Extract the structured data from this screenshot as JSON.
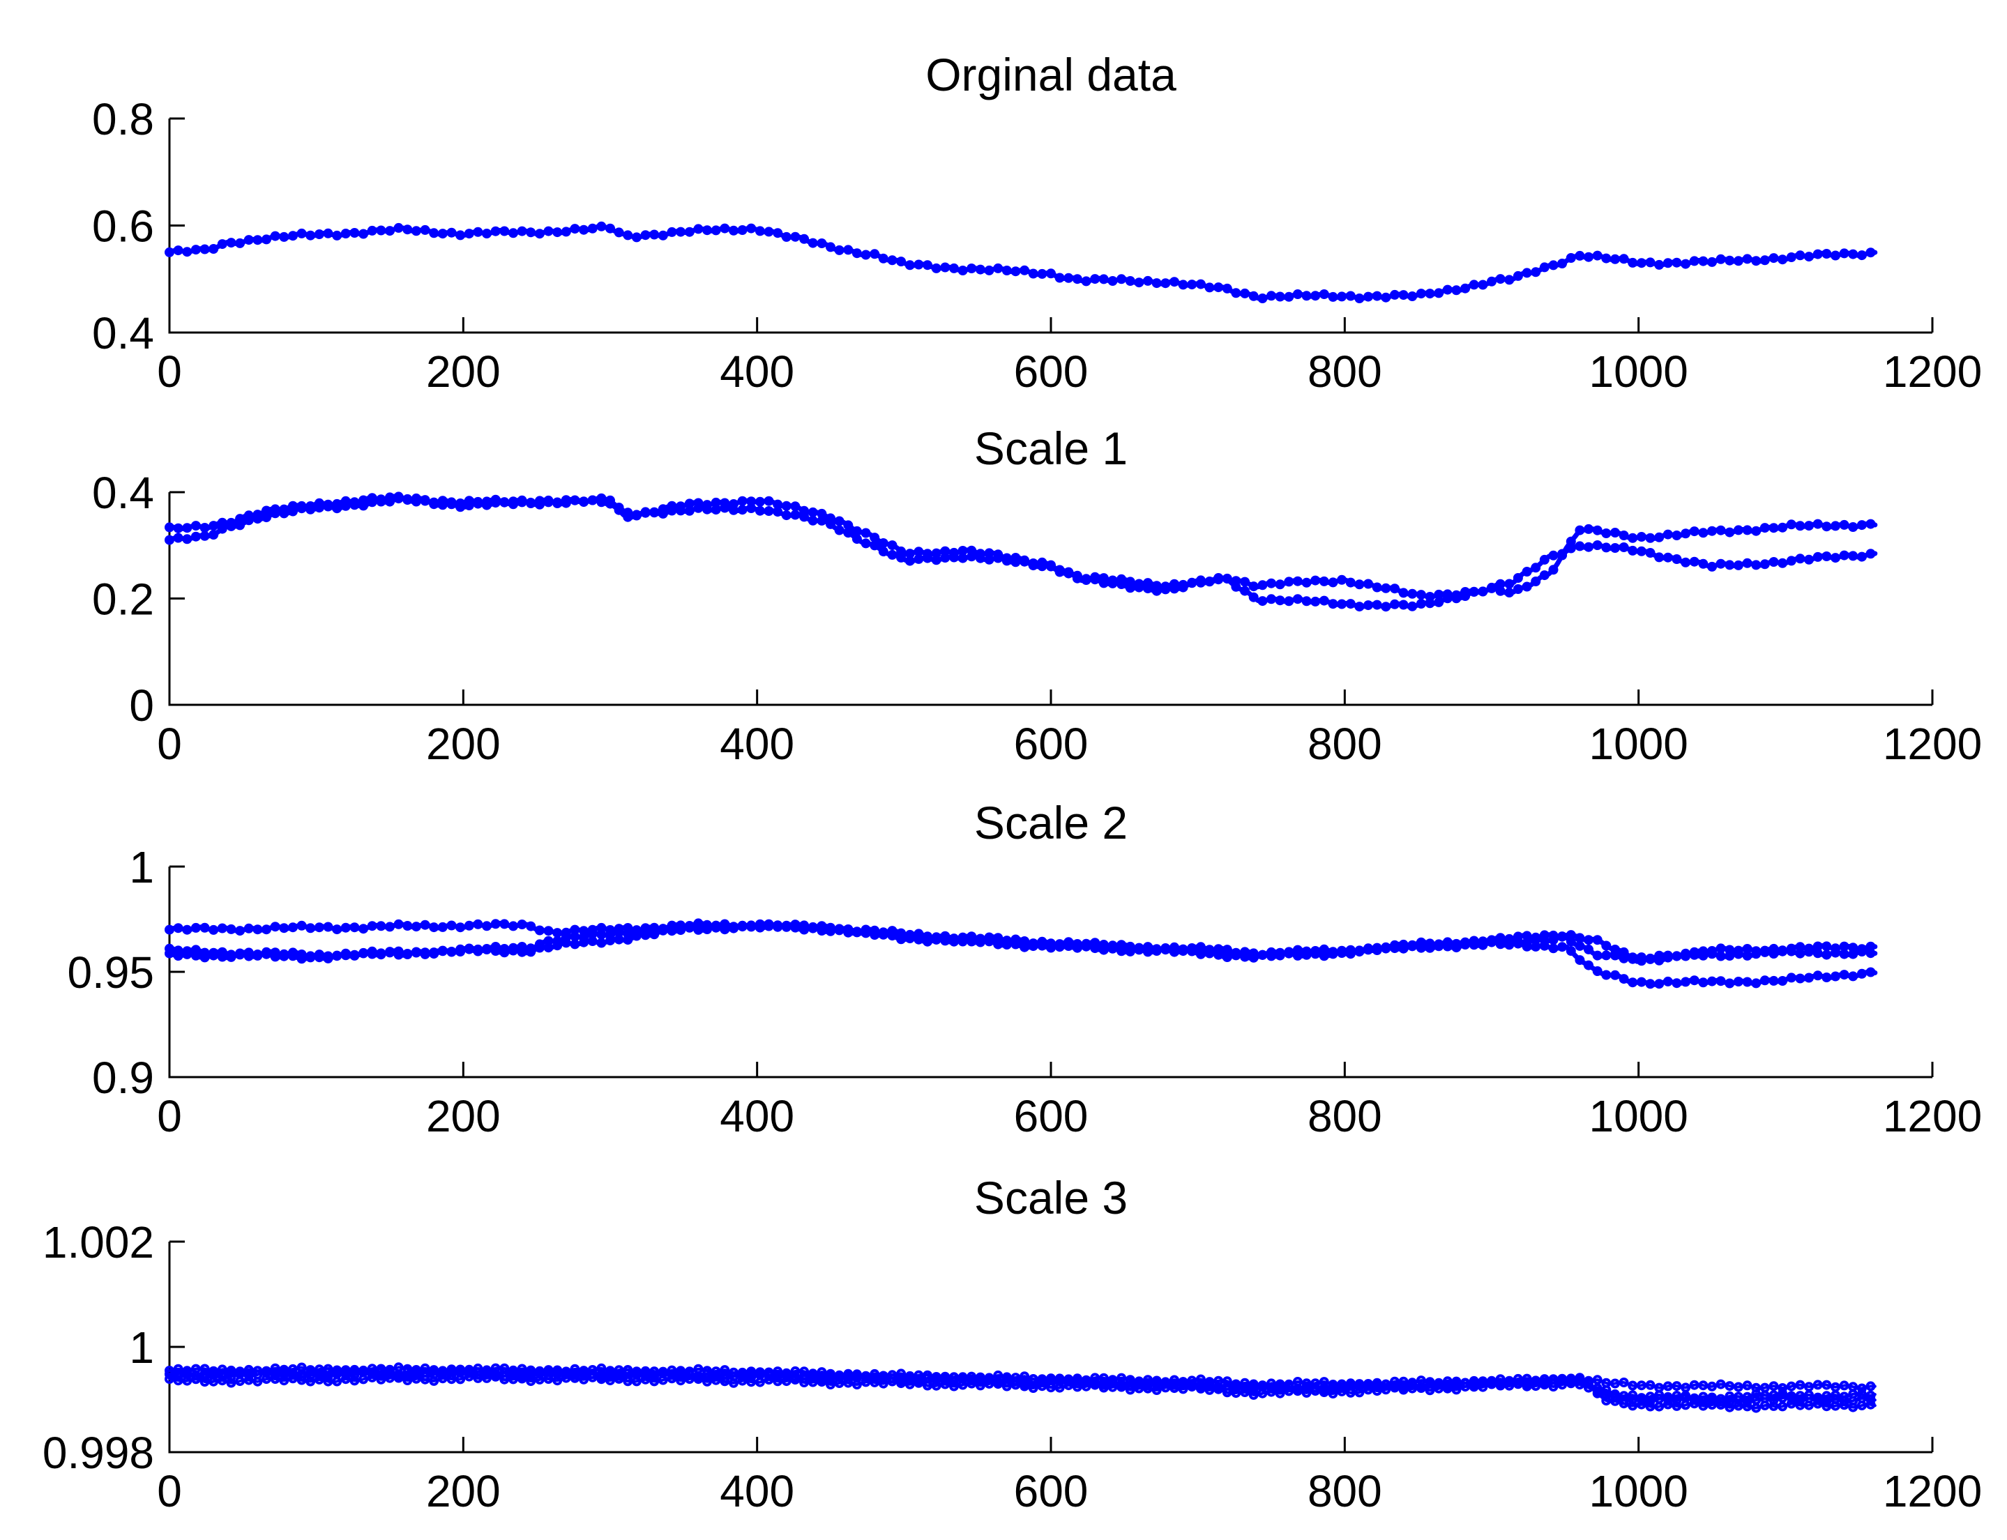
{
  "chart_data": [
    {
      "type": "scatter",
      "title": "Orginal data",
      "xlim": [
        0,
        1200
      ],
      "ylim": [
        0.4,
        0.8
      ],
      "xticks": [
        0,
        200,
        400,
        600,
        800,
        1000,
        1200
      ],
      "yticks": [
        0.4,
        0.6,
        0.8
      ],
      "xtick_labels": [
        "0",
        "200",
        "400",
        "600",
        "800",
        "1000",
        "1200"
      ],
      "ytick_labels": [
        "0.4",
        "0.6",
        "0.8"
      ],
      "marker": "circle",
      "color": "#0000ff",
      "series": [
        {
          "x": [
            0,
            25,
            40,
            60,
            100,
            160,
            200,
            250,
            300,
            310,
            350,
            400,
            420,
            450,
            480,
            500,
            540,
            600,
            620,
            680,
            720,
            740,
            800,
            850,
            900,
            915,
            940,
            960,
            1000,
            1050,
            1100,
            1163
          ],
          "y": [
            0.55,
            0.553,
            0.568,
            0.575,
            0.583,
            0.592,
            0.585,
            0.588,
            0.595,
            0.58,
            0.588,
            0.595,
            0.58,
            0.56,
            0.545,
            0.527,
            0.52,
            0.51,
            0.498,
            0.495,
            0.48,
            0.468,
            0.468,
            0.468,
            0.495,
            0.5,
            0.525,
            0.545,
            0.53,
            0.532,
            0.54,
            0.55
          ]
        }
      ]
    },
    {
      "type": "scatter",
      "title": "Scale 1",
      "xlim": [
        0,
        1200
      ],
      "ylim": [
        0,
        0.4
      ],
      "xticks": [
        0,
        200,
        400,
        600,
        800,
        1000,
        1200
      ],
      "yticks": [
        0,
        0.2,
        0.4
      ],
      "xtick_labels": [
        "0",
        "200",
        "400",
        "600",
        "800",
        "1000",
        "1200"
      ],
      "ytick_labels": [
        "0",
        "0.2",
        "0.4"
      ],
      "marker": "circle",
      "color": "#0000ff",
      "series": [
        {
          "x": [
            0,
            25,
            40,
            60,
            100,
            160,
            200,
            250,
            300,
            310,
            350,
            400,
            450,
            500,
            540,
            600,
            620,
            680,
            720,
            740,
            800,
            850,
            900,
            915,
            940,
            960,
            1000,
            1050,
            1100,
            1163
          ],
          "y": [
            0.31,
            0.315,
            0.335,
            0.352,
            0.37,
            0.385,
            0.375,
            0.38,
            0.385,
            0.36,
            0.365,
            0.37,
            0.34,
            0.27,
            0.28,
            0.26,
            0.24,
            0.225,
            0.235,
            0.2,
            0.19,
            0.185,
            0.22,
            0.23,
            0.28,
            0.3,
            0.29,
            0.26,
            0.27,
            0.285
          ]
        },
        {
          "x": [
            0,
            25,
            40,
            60,
            100,
            160,
            200,
            250,
            300,
            310,
            350,
            400,
            450,
            500,
            540,
            600,
            620,
            680,
            720,
            740,
            800,
            850,
            900,
            915,
            940,
            960,
            1000,
            1050,
            1100,
            1163
          ],
          "y": [
            0.33,
            0.335,
            0.345,
            0.36,
            0.378,
            0.39,
            0.38,
            0.385,
            0.38,
            0.355,
            0.375,
            0.385,
            0.355,
            0.285,
            0.29,
            0.265,
            0.235,
            0.215,
            0.24,
            0.225,
            0.235,
            0.205,
            0.215,
            0.21,
            0.25,
            0.33,
            0.315,
            0.325,
            0.335,
            0.34
          ]
        }
      ]
    },
    {
      "type": "scatter",
      "title": "Scale 2",
      "xlim": [
        0,
        1200
      ],
      "ylim": [
        0.9,
        1
      ],
      "xticks": [
        0,
        200,
        400,
        600,
        800,
        1000,
        1200
      ],
      "yticks": [
        0.9,
        0.95,
        1
      ],
      "xtick_labels": [
        "0",
        "200",
        "400",
        "600",
        "800",
        "1000",
        "1200"
      ],
      "ytick_labels": [
        "0.9",
        "0.95",
        "1"
      ],
      "marker": "circle",
      "color": "#0000ff",
      "series": [
        {
          "x": [
            0,
            100,
            200,
            245,
            260,
            300,
            350,
            400,
            450,
            500,
            600,
            700,
            740,
            800,
            850,
            900,
            950,
            970,
            1000,
            1050,
            1100,
            1163
          ],
          "y": [
            0.97,
            0.971,
            0.972,
            0.972,
            0.969,
            0.97,
            0.972,
            0.972,
            0.971,
            0.967,
            0.963,
            0.961,
            0.959,
            0.96,
            0.963,
            0.965,
            0.968,
            0.965,
            0.955,
            0.96,
            0.961,
            0.962
          ]
        },
        {
          "x": [
            0,
            100,
            200,
            245,
            260,
            300,
            350,
            400,
            450,
            500,
            600,
            700,
            740,
            800,
            850,
            900,
            950,
            970,
            1000,
            1050,
            1100,
            1163
          ],
          "y": [
            0.96,
            0.958,
            0.96,
            0.962,
            0.965,
            0.968,
            0.971,
            0.972,
            0.971,
            0.968,
            0.964,
            0.96,
            0.958,
            0.96,
            0.962,
            0.963,
            0.962,
            0.95,
            0.945,
            0.945,
            0.946,
            0.95
          ]
        },
        {
          "x": [
            0,
            100,
            200,
            245,
            260,
            300,
            350,
            400,
            450,
            500,
            600,
            700,
            740,
            800,
            850,
            900,
            950,
            970,
            1000,
            1050,
            1100,
            1163
          ],
          "y": [
            0.958,
            0.957,
            0.96,
            0.96,
            0.962,
            0.965,
            0.97,
            0.972,
            0.97,
            0.966,
            0.962,
            0.959,
            0.957,
            0.959,
            0.962,
            0.964,
            0.966,
            0.958,
            0.957,
            0.958,
            0.959,
            0.959
          ]
        }
      ]
    },
    {
      "type": "scatter",
      "title": "Scale 3",
      "xlim": [
        0,
        1200
      ],
      "ylim": [
        0.998,
        1.002
      ],
      "xticks": [
        0,
        200,
        400,
        600,
        800,
        1000,
        1200
      ],
      "yticks": [
        0.998,
        1,
        1.002
      ],
      "xtick_labels": [
        "0",
        "200",
        "400",
        "600",
        "800",
        "1000",
        "1200"
      ],
      "ytick_labels": [
        "0.998",
        "1",
        "1.002"
      ],
      "marker": "circle",
      "color": "#0000ff",
      "series": [
        {
          "x": [
            0,
            100,
            200,
            300,
            400,
            500,
            600,
            700,
            740,
            800,
            900,
            960,
            980,
            1000,
            1050,
            1100,
            1163
          ],
          "y": [
            0.99955,
            0.99957,
            0.99957,
            0.99955,
            0.99953,
            0.99945,
            0.9994,
            0.99935,
            0.9993,
            0.9993,
            0.99935,
            0.9994,
            0.9993,
            0.99927,
            0.99925,
            0.99925,
            0.99925
          ]
        },
        {
          "x": [
            0,
            100,
            200,
            300,
            400,
            500,
            600,
            700,
            740,
            800,
            900,
            960,
            980,
            1000,
            1050,
            1100,
            1163
          ],
          "y": [
            0.99935,
            0.99937,
            0.9994,
            0.99938,
            0.99935,
            0.9993,
            0.99925,
            0.9992,
            0.99912,
            0.99915,
            0.99925,
            0.9993,
            0.99895,
            0.9989,
            0.99888,
            0.99888,
            0.9989
          ]
        },
        {
          "x": [
            0,
            100,
            200,
            300,
            400,
            500,
            600,
            700,
            740,
            800,
            900,
            960,
            980,
            1000,
            1050,
            1100,
            1163
          ],
          "y": [
            0.99945,
            0.99947,
            0.99948,
            0.99946,
            0.99944,
            0.99938,
            0.99932,
            0.99927,
            0.9992,
            0.99922,
            0.9993,
            0.99935,
            0.99905,
            0.999,
            0.99898,
            0.999,
            0.999
          ]
        },
        {
          "x": [
            0,
            100,
            200,
            300,
            400,
            500,
            600,
            700,
            740,
            800,
            900,
            960,
            980,
            1000,
            1050,
            1100,
            1163
          ],
          "y": [
            0.9995,
            0.99952,
            0.99953,
            0.99951,
            0.99948,
            0.99942,
            0.99936,
            0.9993,
            0.99924,
            0.99925,
            0.99932,
            0.99938,
            0.99915,
            0.99905,
            0.99905,
            0.99908,
            0.99908
          ]
        }
      ]
    }
  ]
}
